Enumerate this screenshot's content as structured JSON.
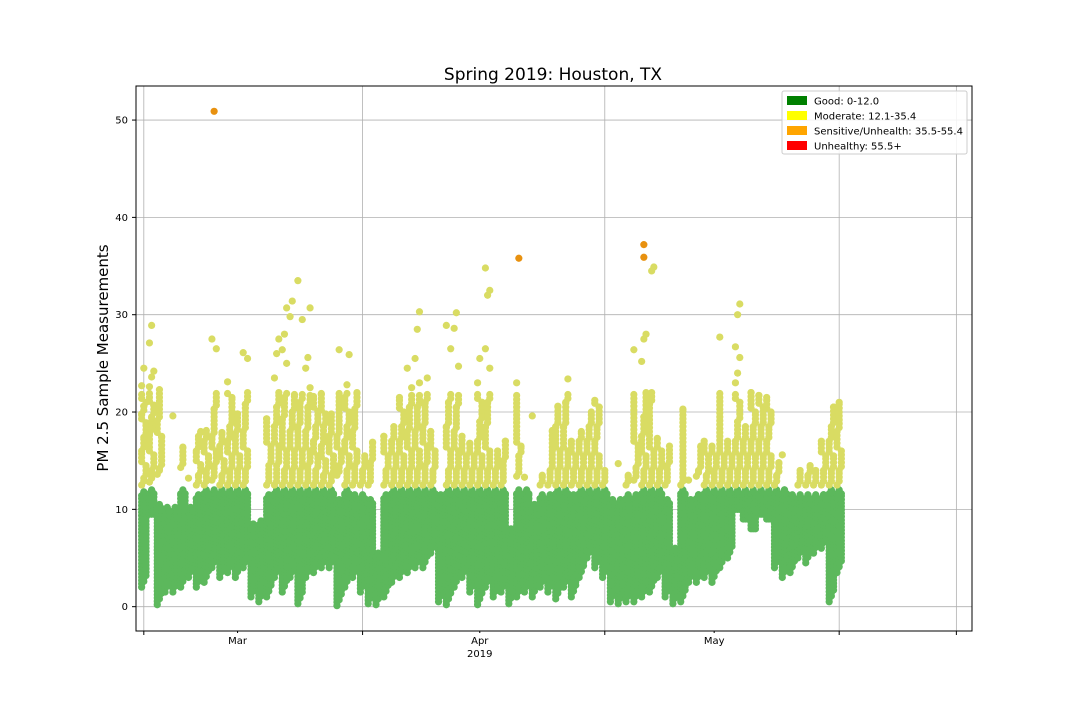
{
  "chart_data": {
    "type": "scatter",
    "title": "Spring 2019: Houston, TX",
    "xlabel": "",
    "ylabel": "PM 2.5 Sample Measurements",
    "x_range": [
      "2019-02-16",
      "2019-06-03"
    ],
    "ylim": [
      -2.5,
      53.5
    ],
    "y_ticks": [
      0,
      10,
      20,
      30,
      40,
      50
    ],
    "x_major_ticks": [
      {
        "label": "Mar",
        "date": "2019-03-01"
      },
      {
        "label": "Apr",
        "date": "2019-04-01"
      },
      {
        "label": "May",
        "date": "2019-05-01"
      }
    ],
    "x_minor_ticks": [
      "2019-02-17",
      "2019-03-17",
      "2019-04-17",
      "2019-05-17",
      "2019-06-01"
    ],
    "x_year_label": "2019",
    "grid": true,
    "legend_position": "top-right",
    "categories_legend": [
      {
        "label": "Good: 0-12.0",
        "color": "#008000"
      },
      {
        "label": "Moderate: 12.1-35.4",
        "color": "#ffff00"
      },
      {
        "label": "Sensitive/Unhealth: 35.5-55.4",
        "color": "#ffa500"
      },
      {
        "label": "Unhealthy: 55.5+",
        "color": "#ff0000"
      }
    ],
    "point_colors": {
      "good": "#5cb85c",
      "moderate": "#d9dc63",
      "sensitive": "#e8910f",
      "unhealthy": "#ff0000"
    },
    "series": [
      {
        "date": "2019-02-17",
        "low": 2.0,
        "high": 11.8,
        "moderate": [
          12.5,
          13.2,
          14.5,
          16.0,
          17.4,
          18.9,
          19.8,
          20.6,
          21.0,
          22.7,
          24.5
        ]
      },
      {
        "date": "2019-02-18",
        "low": 9.5,
        "high": 12.0,
        "moderate": [
          12.8,
          14.0,
          15.6,
          17.8,
          19.5,
          20.7,
          22.6,
          23.6,
          24.2,
          27.1,
          28.9
        ]
      },
      {
        "date": "2019-02-19",
        "low": 0.2,
        "high": 10.5,
        "moderate": [
          13.6,
          14.2,
          17.5,
          19.1,
          22.3
        ]
      },
      {
        "date": "2019-02-20",
        "low": 1.5,
        "high": 10.2,
        "moderate": []
      },
      {
        "date": "2019-02-21",
        "low": 1.5,
        "high": 10.2,
        "moderate": [
          19.6
        ]
      },
      {
        "date": "2019-02-22",
        "low": 2.0,
        "high": 12.0,
        "moderate": [
          14.3,
          16.4
        ]
      },
      {
        "date": "2019-02-23",
        "low": 3.0,
        "high": 10.2,
        "moderate": [
          13.2
        ]
      },
      {
        "date": "2019-02-24",
        "low": 2.0,
        "high": 11.5,
        "moderate": [
          12.5,
          13.5,
          14.6,
          16.0,
          17.5,
          18.0
        ]
      },
      {
        "date": "2019-02-25",
        "low": 2.5,
        "high": 12.0,
        "moderate": [
          12.5,
          14.0,
          15.5,
          17.0,
          18.1
        ]
      },
      {
        "date": "2019-02-26",
        "low": 4.0,
        "high": 12.0,
        "moderate": [
          13.0,
          14.5,
          16.0,
          17.5,
          20.3,
          26.5,
          27.5
        ],
        "sensitive": [
          50.9
        ]
      },
      {
        "date": "2019-02-27",
        "low": 3.0,
        "high": 12.0,
        "moderate": [
          12.5,
          13.5,
          15.0,
          16.5,
          17.9
        ]
      },
      {
        "date": "2019-02-28",
        "low": 3.5,
        "high": 12.0,
        "moderate": [
          12.5,
          14.0,
          15.5,
          17.0,
          18.5,
          21.5,
          23.1
        ]
      },
      {
        "date": "2019-03-01",
        "low": 3.0,
        "high": 12.0,
        "moderate": [
          12.5,
          14.0,
          15.5,
          17.8,
          19.8
        ]
      },
      {
        "date": "2019-03-02",
        "low": 4.0,
        "high": 12.0,
        "moderate": [
          12.5,
          14.0,
          16.0,
          18.0,
          20.8,
          25.5,
          26.1
        ]
      },
      {
        "date": "2019-03-03",
        "low": 1.0,
        "high": 8.5,
        "moderate": []
      },
      {
        "date": "2019-03-04",
        "low": 0.5,
        "high": 8.8,
        "moderate": []
      },
      {
        "date": "2019-03-05",
        "low": 1.0,
        "high": 11.5,
        "moderate": [
          12.5,
          14.5,
          16.5,
          19.3
        ]
      },
      {
        "date": "2019-03-06",
        "low": 3.0,
        "high": 12.0,
        "moderate": [
          12.5,
          14.5,
          16.5,
          18.5,
          20.5,
          22.0,
          23.5,
          26.0,
          27.5
        ]
      },
      {
        "date": "2019-03-07",
        "low": 1.5,
        "high": 12.0,
        "moderate": [
          12.5,
          14.0,
          16.0,
          19.3,
          21.5,
          25.0,
          26.4,
          28.0,
          30.7
        ]
      },
      {
        "date": "2019-03-08",
        "low": 3.0,
        "high": 12.0,
        "moderate": [
          12.5,
          14.0,
          16.0,
          18.0,
          20.0,
          21.8,
          29.8,
          31.4
        ]
      },
      {
        "date": "2019-03-09",
        "low": 0.3,
        "high": 12.0,
        "moderate": [
          12.5,
          14.0,
          16.0,
          18.5,
          21.0,
          29.5,
          33.5
        ]
      },
      {
        "date": "2019-03-10",
        "low": 3.0,
        "high": 12.0,
        "moderate": [
          12.5,
          14.5,
          16.0,
          18.0,
          20.5,
          22.5,
          24.5,
          25.6,
          30.7
        ]
      },
      {
        "date": "2019-03-11",
        "low": 3.5,
        "high": 12.0,
        "moderate": [
          12.5,
          14.0,
          15.5,
          17.0,
          18.5,
          20.1,
          21.6
        ]
      },
      {
        "date": "2019-03-12",
        "low": 4.0,
        "high": 12.0,
        "moderate": [
          12.5,
          13.5,
          15.0,
          16.5,
          18.5,
          19.8,
          21.9
        ]
      },
      {
        "date": "2019-03-13",
        "low": 4.0,
        "high": 12.0,
        "moderate": [
          12.5,
          13.5,
          15.5,
          17.5,
          19.8
        ]
      },
      {
        "date": "2019-03-14",
        "low": 0.1,
        "high": 11.0,
        "moderate": [
          13.5,
          14.5,
          16.0,
          17.5,
          26.4
        ]
      },
      {
        "date": "2019-03-15",
        "low": 2.0,
        "high": 12.0,
        "moderate": [
          12.5,
          14.0,
          15.5,
          17.0,
          18.5,
          20.0,
          21.5,
          22.8,
          25.9
        ]
      },
      {
        "date": "2019-03-16",
        "low": 3.0,
        "high": 11.5,
        "moderate": [
          12.5,
          14.5,
          16.0,
          18.0,
          20.3,
          22.0
        ]
      },
      {
        "date": "2019-03-17",
        "low": 1.5,
        "high": 11.5,
        "moderate": [
          12.5,
          14.0,
          15.5
        ]
      },
      {
        "date": "2019-03-18",
        "low": 0.3,
        "high": 11.0,
        "moderate": [
          12.5,
          14.8,
          16.9
        ]
      },
      {
        "date": "2019-03-19",
        "low": 0.2,
        "high": 5.5,
        "moderate": []
      },
      {
        "date": "2019-03-20",
        "low": 1.0,
        "high": 11.5,
        "moderate": [
          12.5,
          14.0,
          15.5,
          17.5
        ]
      },
      {
        "date": "2019-03-21",
        "low": 2.5,
        "high": 12.0,
        "moderate": [
          12.5,
          14.0,
          15.5,
          17.0,
          18.5
        ]
      },
      {
        "date": "2019-03-22",
        "low": 3.0,
        "high": 12.0,
        "moderate": [
          12.5,
          14.0,
          15.5,
          17.0,
          18.5,
          20.0,
          21.5
        ]
      },
      {
        "date": "2019-03-23",
        "low": 3.5,
        "high": 12.0,
        "moderate": [
          12.5,
          14.0,
          16.0,
          18.0,
          20.5,
          22.5,
          24.5
        ]
      },
      {
        "date": "2019-03-24",
        "low": 4.0,
        "high": 12.0,
        "moderate": [
          12.5,
          14.0,
          16.0,
          18.0,
          20.5,
          23.0,
          25.5,
          28.5,
          30.3
        ]
      },
      {
        "date": "2019-03-25",
        "low": 4.0,
        "high": 12.0,
        "moderate": [
          12.5,
          14.5,
          16.5,
          18.5,
          21.0,
          23.5
        ]
      },
      {
        "date": "2019-03-26",
        "low": 5.5,
        "high": 12.0,
        "moderate": [
          12.5,
          14.0,
          16.0,
          18.0
        ]
      },
      {
        "date": "2019-03-27",
        "low": 0.5,
        "high": 11.5,
        "moderate": []
      },
      {
        "date": "2019-03-28",
        "low": 0.2,
        "high": 12.0,
        "moderate": [
          12.5,
          14.0,
          16.0,
          18.5,
          21.0,
          26.5,
          28.9
        ]
      },
      {
        "date": "2019-03-29",
        "low": 2.0,
        "high": 12.0,
        "moderate": [
          12.5,
          14.0,
          16.0,
          18.0,
          20.5,
          24.7,
          28.6,
          30.2
        ]
      },
      {
        "date": "2019-03-30",
        "low": 3.0,
        "high": 12.0,
        "moderate": [
          12.5,
          14.0,
          15.5,
          17.5
        ]
      },
      {
        "date": "2019-03-31",
        "low": 1.5,
        "high": 12.0,
        "moderate": [
          12.5,
          14.0,
          15.5,
          16.8
        ]
      },
      {
        "date": "2019-04-01",
        "low": 0.2,
        "high": 12.0,
        "moderate": [
          12.5,
          14.0,
          15.5,
          17.0,
          19.0,
          21.0,
          23.0,
          25.5
        ]
      },
      {
        "date": "2019-04-02",
        "low": 2.0,
        "high": 12.0,
        "moderate": [
          12.5,
          14.0,
          16.0,
          18.5,
          21.0,
          24.5,
          26.5,
          32.0,
          32.5,
          34.8
        ]
      },
      {
        "date": "2019-04-03",
        "low": 1.0,
        "high": 12.0,
        "moderate": [
          12.5,
          14.0,
          16.0
        ]
      },
      {
        "date": "2019-04-04",
        "low": 1.5,
        "high": 12.0,
        "moderate": [
          12.5,
          15.0,
          17.0
        ]
      },
      {
        "date": "2019-04-05",
        "low": 0.3,
        "high": 8.0,
        "moderate": []
      },
      {
        "date": "2019-04-06",
        "low": 1.0,
        "high": 12.0,
        "moderate": [
          13.4,
          15.5,
          16.5,
          23.0
        ],
        "sensitive": [
          35.8
        ]
      },
      {
        "date": "2019-04-07",
        "low": 1.5,
        "high": 12.0,
        "moderate": [
          13.3
        ]
      },
      {
        "date": "2019-04-08",
        "low": 1.0,
        "high": 10.5,
        "moderate": [
          19.6
        ]
      },
      {
        "date": "2019-04-09",
        "low": 2.0,
        "high": 11.5,
        "moderate": [
          12.5,
          13.5
        ]
      },
      {
        "date": "2019-04-10",
        "low": 1.5,
        "high": 11.5,
        "moderate": [
          12.5,
          14.0,
          18.1
        ]
      },
      {
        "date": "2019-04-11",
        "low": 0.8,
        "high": 12.0,
        "moderate": [
          12.5,
          14.0,
          16.0,
          18.5,
          20.6
        ]
      },
      {
        "date": "2019-04-12",
        "low": 2.0,
        "high": 12.0,
        "moderate": [
          12.5,
          14.0,
          16.0,
          18.5,
          21.0,
          23.4
        ]
      },
      {
        "date": "2019-04-13",
        "low": 1.0,
        "high": 11.5,
        "moderate": [
          12.5,
          14.0,
          15.5,
          17.0
        ]
      },
      {
        "date": "2019-04-14",
        "low": 3.0,
        "high": 12.0,
        "moderate": [
          12.5,
          14.0,
          15.5,
          17.0,
          18.0
        ]
      },
      {
        "date": "2019-04-15",
        "low": 5.0,
        "high": 12.0,
        "moderate": [
          12.5,
          14.0,
          15.5,
          17.0,
          18.5,
          20.0
        ]
      },
      {
        "date": "2019-04-16",
        "low": 4.0,
        "high": 12.0,
        "moderate": [
          12.5,
          14.0,
          15.5,
          17.0,
          18.5,
          20.5,
          21.2
        ]
      },
      {
        "date": "2019-04-17",
        "low": 3.0,
        "high": 12.0,
        "moderate": [
          12.5,
          14.0
        ]
      },
      {
        "date": "2019-04-18",
        "low": 0.5,
        "high": 11.0,
        "moderate": []
      },
      {
        "date": "2019-04-19",
        "low": 0.3,
        "high": 11.0,
        "moderate": [
          14.7
        ]
      },
      {
        "date": "2019-04-20",
        "low": 0.5,
        "high": 11.5,
        "moderate": [
          12.5,
          13.5
        ]
      },
      {
        "date": "2019-04-21",
        "low": 0.5,
        "high": 11.5,
        "moderate": [
          13.0,
          14.3,
          16.6,
          26.4
        ]
      },
      {
        "date": "2019-04-22",
        "low": 1.0,
        "high": 12.0,
        "moderate": [
          12.5,
          14.0,
          15.5,
          17.5,
          19.5,
          22.0,
          25.2,
          27.5,
          28.0
        ],
        "sensitive": [
          35.9,
          37.2
        ]
      },
      {
        "date": "2019-04-23",
        "low": 1.5,
        "high": 12.0,
        "moderate": [
          12.5,
          14.0,
          16.0,
          20.8,
          34.5,
          34.9
        ]
      },
      {
        "date": "2019-04-24",
        "low": 3.0,
        "high": 12.0,
        "moderate": [
          12.5,
          14.0,
          16.0,
          17.3
        ]
      },
      {
        "date": "2019-04-25",
        "low": 1.0,
        "high": 11.0,
        "moderate": [
          12.5,
          14.5,
          16.5
        ]
      },
      {
        "date": "2019-04-26",
        "low": 0.3,
        "high": 6.0,
        "moderate": []
      },
      {
        "date": "2019-04-27",
        "low": 0.5,
        "high": 12.0,
        "moderate": [
          12.5,
          20.3
        ]
      },
      {
        "date": "2019-04-28",
        "low": 2.5,
        "high": 11.0,
        "moderate": [
          13.0
        ]
      },
      {
        "date": "2019-04-29",
        "low": 2.5,
        "high": 11.5,
        "moderate": [
          13.4,
          14.0,
          16.5
        ]
      },
      {
        "date": "2019-04-30",
        "low": 3.0,
        "high": 12.0,
        "moderate": [
          12.5,
          13.5,
          15.5,
          17.0
        ]
      },
      {
        "date": "2019-05-01",
        "low": 2.5,
        "high": 12.0,
        "moderate": [
          12.5,
          14.0,
          15.5,
          16.5
        ]
      },
      {
        "date": "2019-05-02",
        "low": 4.0,
        "high": 12.0,
        "moderate": [
          12.5,
          14.0,
          15.5,
          27.7
        ]
      },
      {
        "date": "2019-05-03",
        "low": 5.0,
        "high": 12.0,
        "moderate": [
          12.5,
          14.0,
          15.5,
          17.0
        ]
      },
      {
        "date": "2019-05-04",
        "low": 10.0,
        "high": 12.0,
        "moderate": [
          12.5,
          14.0,
          15.5,
          17.0,
          19.0,
          21.0,
          23.0,
          24.0,
          25.6,
          26.7,
          30.0,
          31.1
        ]
      },
      {
        "date": "2019-05-05",
        "low": 9.0,
        "high": 12.0,
        "moderate": [
          12.5,
          14.0,
          15.5,
          17.0,
          18.5
        ]
      },
      {
        "date": "2019-05-06",
        "low": 8.0,
        "high": 12.0,
        "moderate": [
          12.5,
          14.0,
          15.5,
          17.0,
          18.5,
          20.0,
          22.0
        ]
      },
      {
        "date": "2019-05-07",
        "low": 9.5,
        "high": 12.0,
        "moderate": [
          12.5,
          14.0,
          15.5,
          17.0,
          18.5,
          20.5,
          21.7
        ]
      },
      {
        "date": "2019-05-08",
        "low": 9.0,
        "high": 12.0,
        "moderate": [
          12.5,
          14.0,
          15.5,
          17.0,
          18.5,
          20.0,
          21.5
        ]
      },
      {
        "date": "2019-05-09",
        "low": 4.0,
        "high": 12.0,
        "moderate": [
          12.5,
          13.5,
          14.8
        ]
      },
      {
        "date": "2019-05-10",
        "low": 3.0,
        "high": 12.0,
        "moderate": [
          15.6
        ]
      },
      {
        "date": "2019-05-11",
        "low": 3.5,
        "high": 11.5,
        "moderate": []
      },
      {
        "date": "2019-05-12",
        "low": 5.0,
        "high": 11.5,
        "moderate": [
          12.5,
          14.0
        ]
      },
      {
        "date": "2019-05-13",
        "low": 4.5,
        "high": 11.5,
        "moderate": [
          12.5,
          13.5,
          14.5
        ]
      },
      {
        "date": "2019-05-14",
        "low": 5.5,
        "high": 11.5,
        "moderate": [
          12.5,
          14.0
        ]
      },
      {
        "date": "2019-05-15",
        "low": 6.0,
        "high": 11.5,
        "moderate": [
          12.5,
          14.0,
          15.5,
          17.0
        ]
      },
      {
        "date": "2019-05-16",
        "low": 0.5,
        "high": 12.0,
        "moderate": [
          12.5,
          14.0,
          15.5,
          17.0,
          18.5,
          20.5
        ]
      },
      {
        "date": "2019-05-17",
        "low": 3.5,
        "high": 12.0,
        "moderate": [
          12.5,
          14.0,
          16.0,
          18.0,
          21.0
        ]
      }
    ]
  }
}
